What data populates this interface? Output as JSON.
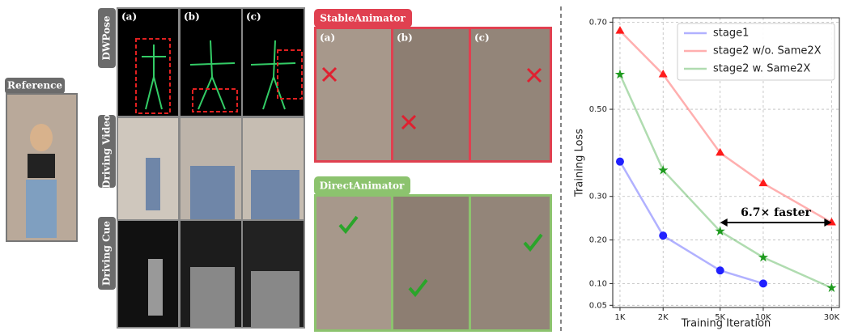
{
  "figure": {
    "reference": "Reference",
    "rows": [
      "DWPose",
      "Driving Video",
      "Driving Cue"
    ],
    "cols": [
      "(a)",
      "(b)",
      "(c)"
    ],
    "stable": {
      "title": "StableAnimator",
      "cols": [
        "(a)",
        "(b)",
        "(c)"
      ]
    },
    "direct": {
      "title": "DirectAnimator"
    }
  },
  "chart_data": {
    "type": "line",
    "xlabel": "Training Iteration",
    "ylabel": "Training Loss",
    "x": [
      1000,
      2000,
      5000,
      10000,
      30000
    ],
    "xscale": "log",
    "xlim": [
      890,
      34000
    ],
    "xticks": [
      {
        "value": 1000,
        "label": "1K"
      },
      {
        "value": 2000,
        "label": "2K"
      },
      {
        "value": 5000,
        "label": "5K"
      },
      {
        "value": 10000,
        "label": "10K"
      },
      {
        "value": 30000,
        "label": "30K"
      }
    ],
    "ylim": [
      0.045,
      0.71
    ],
    "yticks": [
      0.05,
      {
        "value": 0.1,
        "label": "0.10"
      },
      {
        "value": 0.2,
        "label": "0.20"
      },
      {
        "value": 0.3,
        "label": "0.30"
      },
      {
        "value": 0.5,
        "label": "0.50"
      },
      {
        "value": 0.7,
        "label": "0.70"
      }
    ],
    "grid": true,
    "legend": "upper right",
    "series": [
      {
        "name": "stage1",
        "color": "#2020ff",
        "marker": "circle",
        "values": [
          0.38,
          0.21,
          0.13,
          0.1,
          null
        ]
      },
      {
        "name": "stage2 w/o. Same2X",
        "color": "#ff1a1a",
        "marker": "triangle",
        "values": [
          0.68,
          0.58,
          0.4,
          0.33,
          0.24
        ]
      },
      {
        "name": "stage2 w. Same2X",
        "color": "#1e9a1e",
        "marker": "star",
        "values": [
          0.58,
          0.36,
          0.22,
          0.16,
          0.09
        ]
      }
    ],
    "annotation": "6.7× faster"
  }
}
